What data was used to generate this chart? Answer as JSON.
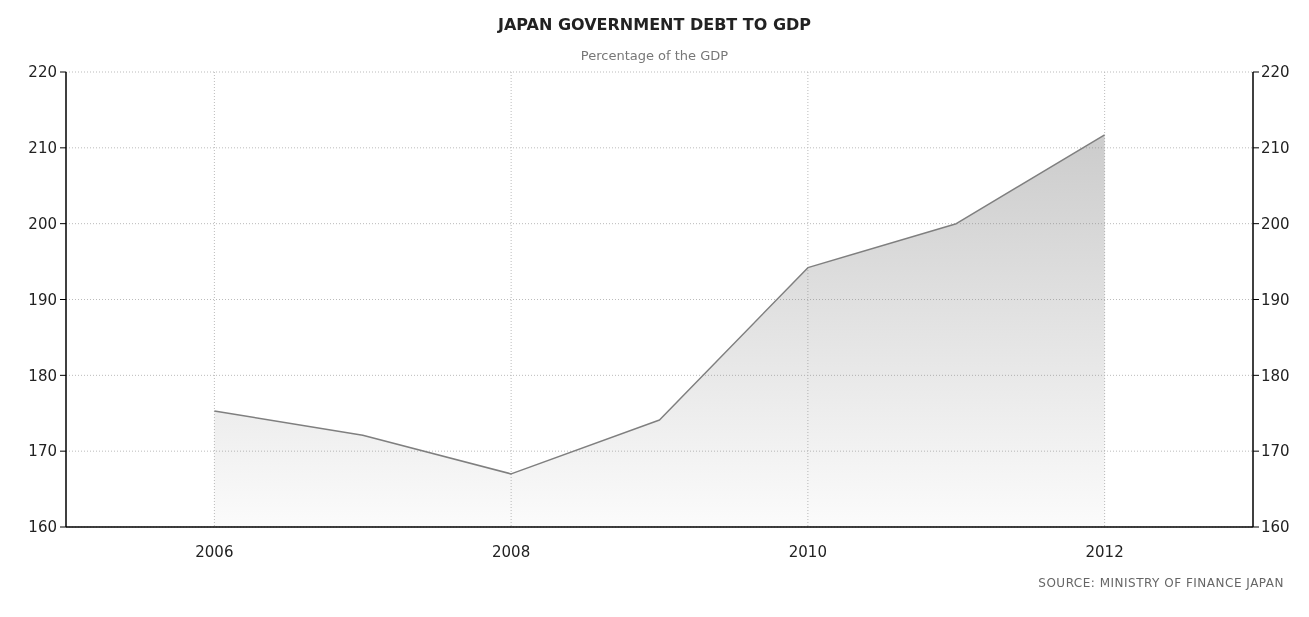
{
  "chart_data": {
    "type": "area",
    "title": "JAPAN GOVERNMENT DEBT TO GDP",
    "subtitle": "Percentage of the GDP",
    "x": [
      2006,
      2007,
      2008,
      2009,
      2010,
      2011,
      2012
    ],
    "series": [
      {
        "color": "#7f7f7f",
        "values": [
          175.3,
          172.1,
          167.0,
          174.1,
          194.2,
          200.0,
          211.7
        ]
      }
    ],
    "xlim": [
      2005,
      2013
    ],
    "xticks": [
      2006,
      2008,
      2010,
      2012
    ],
    "ylim": [
      160,
      220
    ],
    "yticks": [
      160,
      170,
      180,
      190,
      200,
      210,
      220
    ],
    "y2lim": [
      160,
      220
    ],
    "y2ticks": [
      160,
      170,
      180,
      190,
      200,
      210,
      220
    ],
    "grid": true,
    "annotations": [
      "SOURCE: MINISTRY OF FINANCE JAPAN"
    ]
  }
}
